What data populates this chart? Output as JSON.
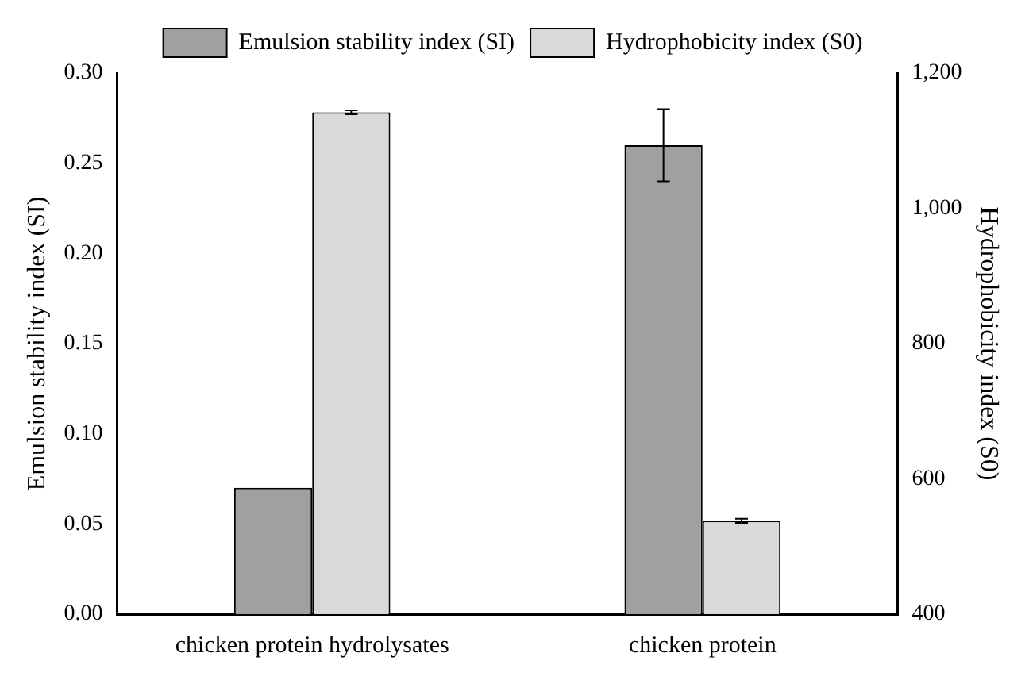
{
  "chart_data": {
    "type": "bar",
    "categories": [
      "chicken protein hydrolysates",
      "chicken protein"
    ],
    "series": [
      {
        "name": "Emulsion stability index (SI)",
        "color": "#a0a0a0",
        "values": [
          0.07,
          0.26
        ],
        "errors": [
          null,
          0.02
        ]
      },
      {
        "name": "Hydrophobicity index (S0)",
        "color": "#d9d9d9",
        "values": [
          1142,
          538
        ],
        "errors": [
          3,
          3
        ],
        "axis": "y2"
      }
    ],
    "ylabel": "Emulsion stability index (SI)",
    "y2label": "Hydrophobicity index (S0)",
    "ylim": [
      0,
      0.3
    ],
    "yticks": [
      {
        "value": 0,
        "label": "0.00"
      },
      {
        "value": 0.05,
        "label": "0.05"
      },
      {
        "value": 0.1,
        "label": "0.10"
      },
      {
        "value": 0.15,
        "label": "0.15"
      },
      {
        "value": 0.2,
        "label": "0.20"
      },
      {
        "value": 0.25,
        "label": "0.25"
      },
      {
        "value": 0.3,
        "label": "0.30"
      }
    ],
    "y2lim": [
      400,
      1200
    ],
    "y2ticks": [
      400,
      600,
      800,
      {
        "value": 1000,
        "label": "1,000"
      },
      {
        "value": 1200,
        "label": "1,200"
      }
    ],
    "legend": "top",
    "grid": false
  }
}
